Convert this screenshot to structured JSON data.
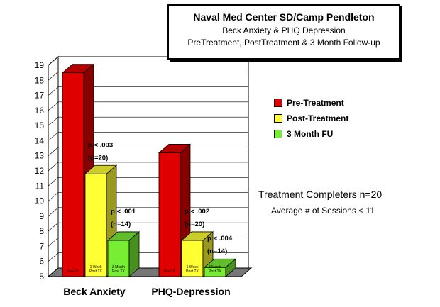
{
  "title_box": {
    "line1": "Naval Med Center SD/Camp Pendleton",
    "line2": "Beck Anxiety & PHQ Depression",
    "line3": "PreTreatment, PostTreatment & 3 Month Follow-up"
  },
  "legend": [
    {
      "label": "Pre-Treatment",
      "color": "#e00000"
    },
    {
      "label": "Post-Treatment",
      "color": "#ffff33"
    },
    {
      "label": "3 Month FU",
      "color": "#77ee33"
    }
  ],
  "notes": {
    "completers": "Treatment Completers n=20",
    "sessions": "Average # of Sessions < 11"
  },
  "chart_data": {
    "type": "bar",
    "title": "",
    "xlabel": "",
    "ylabel": "",
    "ylim": [
      5,
      19
    ],
    "yticks": [
      "5",
      "6",
      "7",
      "8",
      "9",
      "10",
      "11",
      "12",
      "13",
      "14",
      "15",
      "16",
      "17",
      "18",
      "19"
    ],
    "categories": [
      "Beck Anxiety",
      "PHQ-Depression"
    ],
    "series": [
      {
        "name": "Pre-Treatment",
        "color": "#e00000",
        "values": [
          18.5,
          13.2
        ],
        "inbar": [
          "Pre-TX",
          "Pre-TX"
        ]
      },
      {
        "name": "Post-Treatment",
        "color": "#ffff33",
        "values": [
          11.8,
          7.4
        ],
        "inbar": [
          "1 Week Post TX",
          "1 Week Post TX"
        ]
      },
      {
        "name": "3 Month FU",
        "color": "#77ee33",
        "values": [
          7.4,
          5.6
        ],
        "inbar": [
          "3 Month Post TX",
          "3 Month Post TX"
        ]
      }
    ],
    "annotations": [
      {
        "text": "p < .003",
        "category": 0,
        "series": 1,
        "line": 0
      },
      {
        "text": "(n=20)",
        "category": 0,
        "series": 1,
        "line": 1
      },
      {
        "text": "p < .001",
        "category": 0,
        "series": 2,
        "line": 0
      },
      {
        "text": "(n=14)",
        "category": 0,
        "series": 2,
        "line": 1
      },
      {
        "text": "p < .002",
        "category": 1,
        "series": 1,
        "line": 0
      },
      {
        "text": "(n=20)",
        "category": 1,
        "series": 1,
        "line": 1
      },
      {
        "text": "p < .004",
        "category": 1,
        "series": 2,
        "line": 0
      },
      {
        "text": "(n=14)",
        "category": 1,
        "series": 2,
        "line": 1
      }
    ],
    "grid": true,
    "legend_position": "right"
  }
}
